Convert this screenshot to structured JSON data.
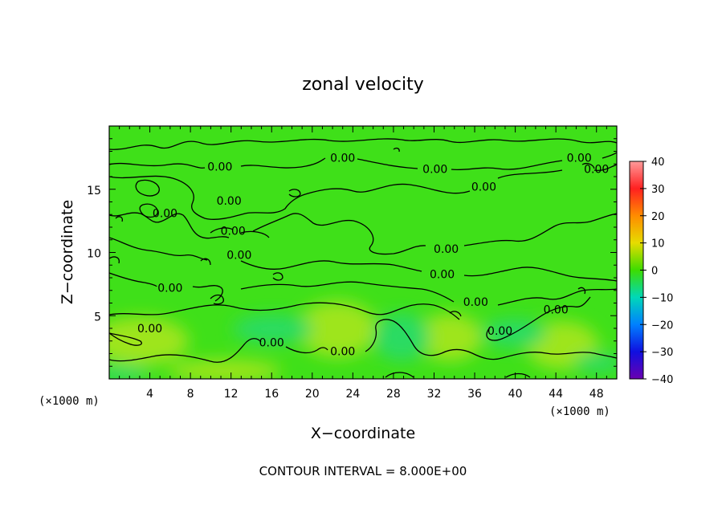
{
  "chart_data": {
    "type": "heatmap",
    "title": "zonal velocity",
    "xlabel": "X−coordinate",
    "ylabel": "Z−coordinate",
    "x_unit_left": "(×1000 m)",
    "x_unit_right": "(×1000 m)",
    "x_ticks": [
      4,
      8,
      12,
      16,
      20,
      24,
      28,
      32,
      36,
      40,
      44,
      48
    ],
    "y_ticks": [
      5,
      10,
      15
    ],
    "xlim": [
      0,
      50
    ],
    "ylim": [
      0,
      20
    ],
    "contour_interval_text": "CONTOUR INTERVAL = 8.000E+00",
    "contour_labels": [
      {
        "text": "0.00",
        "x": 10.9,
        "y": 16.8
      },
      {
        "text": "0.00",
        "x": 23.0,
        "y": 17.5
      },
      {
        "text": "0.00",
        "x": 32.1,
        "y": 16.6
      },
      {
        "text": "0.00",
        "x": 36.9,
        "y": 15.2
      },
      {
        "text": "0.00",
        "x": 46.3,
        "y": 17.5
      },
      {
        "text": "0.00",
        "x": 48.0,
        "y": 16.6
      },
      {
        "text": "0.00",
        "x": 11.8,
        "y": 14.1
      },
      {
        "text": "0.00",
        "x": 5.5,
        "y": 13.1
      },
      {
        "text": "0.00",
        "x": 12.2,
        "y": 11.7
      },
      {
        "text": "0.00",
        "x": 12.8,
        "y": 9.8
      },
      {
        "text": "0.00",
        "x": 6.0,
        "y": 7.2
      },
      {
        "text": "0.00",
        "x": 33.2,
        "y": 10.3
      },
      {
        "text": "0.00",
        "x": 32.8,
        "y": 8.3
      },
      {
        "text": "0.00",
        "x": 36.1,
        "y": 6.1
      },
      {
        "text": "0.00",
        "x": 44.0,
        "y": 5.5
      },
      {
        "text": "0.00",
        "x": 38.5,
        "y": 3.8
      },
      {
        "text": "0.00",
        "x": 4.0,
        "y": 4.0
      },
      {
        "text": "0.00",
        "x": 16.0,
        "y": 2.9
      },
      {
        "text": "0.00",
        "x": 23.0,
        "y": 2.2
      }
    ],
    "colorbar": {
      "ticks": [
        40,
        30,
        20,
        10,
        0,
        -10,
        -20,
        -30,
        -40
      ],
      "tick_labels": [
        "40",
        "30",
        "20",
        "10",
        "0",
        "−10",
        "−20",
        "−30",
        "−40"
      ],
      "range": [
        -40,
        40
      ],
      "colors": [
        "#ff9a9a",
        "#ff2020",
        "#ff8c00",
        "#e6dc00",
        "#3ddc00",
        "#00d8b8",
        "#0080ff",
        "#1010e0",
        "#6a00b0"
      ]
    },
    "field_colors": {
      "base": "#3fe019",
      "warm": "#9ee51a",
      "cool": "#2cdb62"
    },
    "grid": false
  }
}
